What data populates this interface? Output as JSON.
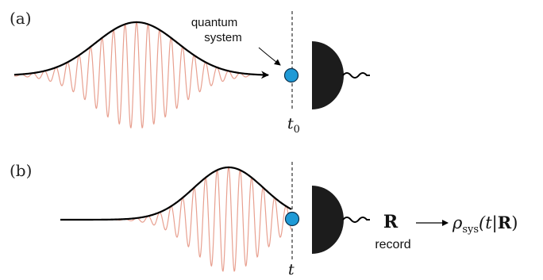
{
  "panel_a": {
    "label": "(a)",
    "annotation_line1": "quantum",
    "annotation_line2": "system",
    "time_base": "t",
    "time_sub": "0"
  },
  "panel_b": {
    "label": "(b)",
    "time_label": "t",
    "record_symbol": "R",
    "record_label": "record",
    "rho_symbol": "ρ",
    "rho_sub": "sys",
    "rho_args_open": "(t|",
    "rho_args_R": "R",
    "rho_args_close": ")"
  },
  "colors": {
    "envelope": "#000000",
    "carrier_wave": "#e8a090",
    "quantum_system": "#1f9ad6",
    "quantum_system_outline": "#0b2f4a",
    "detector": "#1c1c1c",
    "dashed_line": "#333333"
  },
  "icons": {
    "detector": "detector-halfdisc-icon",
    "quantum_system": "blue-dot-icon"
  }
}
